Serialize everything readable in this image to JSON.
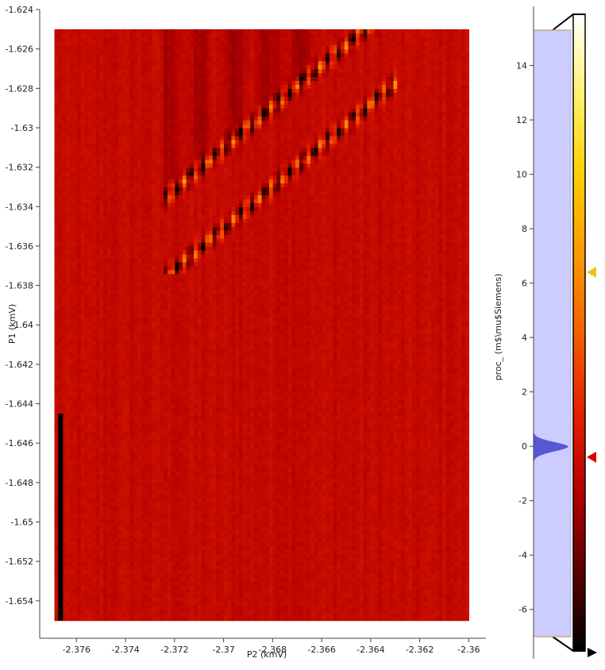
{
  "chart_data": {
    "type": "heatmap",
    "xlabel": "P2 (kmV)",
    "ylabel": "P1 (kmV)",
    "xlim": [
      -2.3775,
      -2.3593
    ],
    "ylim": [
      -1.6559,
      -1.624
    ],
    "x_ticks": [
      "-2.376",
      "-2.374",
      "-2.372",
      "-2.37",
      "-2.368",
      "-2.366",
      "-2.364",
      "-2.362",
      "-2.36"
    ],
    "y_ticks": [
      "-1.624",
      "-1.626",
      "-1.628",
      "-1.63",
      "-1.632",
      "-1.634",
      "-1.636",
      "-1.638",
      "-1.64",
      "-1.642",
      "-1.644",
      "-1.646",
      "-1.648",
      "-1.65",
      "-1.652",
      "-1.654"
    ],
    "data_extent": {
      "x": [
        -2.3769,
        -2.36
      ],
      "y": [
        -1.655,
        -1.625
      ]
    },
    "features": [
      {
        "description": "bright diagonal transition lines",
        "x": [
          -2.3722,
          -2.3635
        ],
        "y": [
          -1.637,
          -1.6268
        ]
      },
      {
        "description": "black column of missing data",
        "x": [
          -2.37675,
          -2.37655
        ],
        "y": [
          -1.655,
          -1.6445
        ]
      }
    ],
    "colorbar": {
      "label": "proc_ (m$\\mu$Siemens)",
      "ticks": [
        "14",
        "12",
        "10",
        "8",
        "6",
        "4",
        "2",
        "0",
        "-2",
        "-4",
        "-6"
      ],
      "range": [
        -7.0,
        15.3
      ],
      "colormap": [
        "#000000",
        "#5a0000",
        "#b40000",
        "#e42000",
        "#f36000",
        "#fa9a00",
        "#fdd000",
        "#fff270",
        "#ffffff"
      ],
      "markers": [
        {
          "value": 6.4,
          "color": "#f0c020"
        },
        {
          "value": -0.4,
          "color": "#dd0000"
        }
      ],
      "histogram_peak_value": 0,
      "histogram_color": "#4a4ad0",
      "histogram_bg": "#ccccff"
    },
    "background_color": "#e42800"
  }
}
